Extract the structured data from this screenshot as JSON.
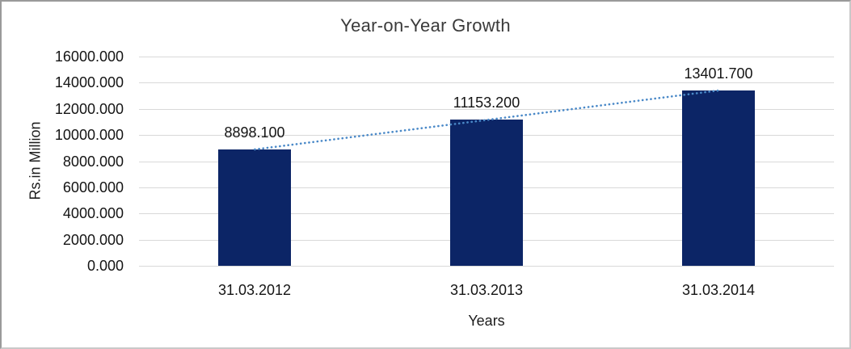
{
  "chart_data": {
    "type": "bar",
    "title": "Year-on-Year Growth",
    "xlabel": "Years",
    "ylabel": "Rs.in Million",
    "categories": [
      "31.03.2012",
      "31.03.2013",
      "31.03.2014"
    ],
    "values": [
      8898.1,
      11153.2,
      13401.7
    ],
    "value_labels": [
      "8898.100",
      "11153.200",
      "13401.700"
    ],
    "y_ticks": [
      "0.000",
      "2000.000",
      "4000.000",
      "6000.000",
      "8000.000",
      "10000.000",
      "12000.000",
      "14000.000",
      "16000.000"
    ],
    "ylim": [
      0,
      16000
    ],
    "grid": true,
    "legend": "none",
    "bar_color": "#0c2566",
    "gridline_color": "#d9d9d9",
    "trendline": {
      "type": "linear",
      "style": "dotted",
      "color": "#4a89c8"
    }
  }
}
